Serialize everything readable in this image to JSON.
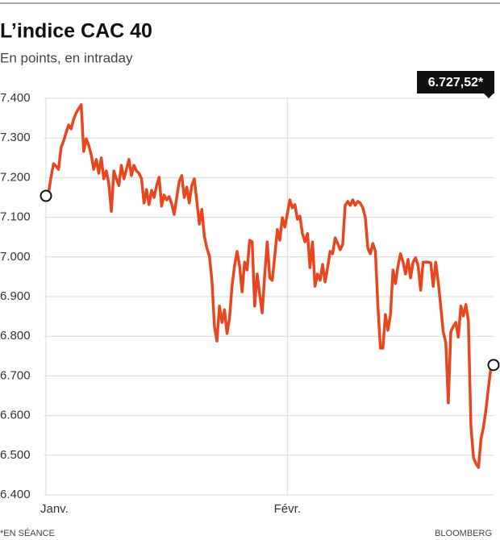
{
  "chart_data": {
    "type": "line",
    "title": "L’indice CAC 40",
    "subtitle": "En points, en intraday",
    "last_label": "6.727,52*",
    "footnote": "*EN SÉANCE",
    "source": "BLOOMBERG",
    "color": "#e8461e",
    "values": [
      7154,
      7160,
      7201,
      7235,
      7229,
      7221,
      7276,
      7292,
      7313,
      7333,
      7323,
      7347,
      7363,
      7374,
      7384,
      7266,
      7298,
      7282,
      7258,
      7221,
      7246,
      7211,
      7250,
      7197,
      7217,
      7185,
      7115,
      7217,
      7197,
      7180,
      7231,
      7197,
      7221,
      7246,
      7205,
      7231,
      7217,
      7211,
      7197,
      7136,
      7170,
      7132,
      7168,
      7150,
      7180,
      7201,
      7128,
      7156,
      7144,
      7152,
      7134,
      7107,
      7150,
      7191,
      7205,
      7150,
      7176,
      7136,
      7180,
      7197,
      7140,
      7083,
      7120,
      7052,
      7022,
      7002,
      6941,
      6825,
      6788,
      6876,
      6835,
      6867,
      6807,
      6845,
      6926,
      6977,
      7014,
      6977,
      6912,
      6987,
      6967,
      7042,
      7038,
      6876,
      6957,
      6906,
      6859,
      6957,
      7038,
      6947,
      6941,
      7002,
      7069,
      7042,
      7099,
      7075,
      7109,
      7144,
      7124,
      7132,
      7095,
      7103,
      7059,
      7038,
      7059,
      6973,
      7038,
      6926,
      6957,
      6941,
      6981,
      6937,
      6973,
      7014,
      7008,
      7048,
      7034,
      7018,
      7032,
      7130,
      7140,
      7130,
      7144,
      7130,
      7140,
      7136,
      7124,
      7099,
      7022,
      7008,
      7034,
      7014,
      6876,
      6770,
      6770,
      6855,
      6815,
      6855,
      6967,
      6933,
      6977,
      7008,
      6987,
      6957,
      6994,
      6947,
      6987,
      6998,
      6977,
      6916,
      6987,
      6987,
      6987,
      6985,
      6926,
      6987,
      6937,
      6876,
      6811,
      6784,
      6632,
      6811,
      6825,
      6835,
      6798,
      6876,
      6851,
      6880,
      6839,
      6575,
      6494,
      6479,
      6469,
      6540,
      6571,
      6615,
      6673,
      6723,
      6727.52
    ],
    "xlim": [
      0,
      178
    ],
    "xticks": [
      {
        "value": 0,
        "label": "Janv."
      },
      {
        "value": 96,
        "label": "Févr."
      }
    ],
    "ylim": [
      6400,
      7400
    ],
    "yticks": [
      {
        "value": 6400,
        "label": "6.400"
      },
      {
        "value": 6500,
        "label": "6.500"
      },
      {
        "value": 6600,
        "label": "6.600"
      },
      {
        "value": 6700,
        "label": "6.700"
      },
      {
        "value": 6800,
        "label": "6.800"
      },
      {
        "value": 6900,
        "label": "6.900"
      },
      {
        "value": 7000,
        "label": "7.000"
      },
      {
        "value": 7100,
        "label": "7.100"
      },
      {
        "value": 7200,
        "label": "7.200"
      },
      {
        "value": 7300,
        "label": "7.300"
      },
      {
        "value": 7400,
        "label": "7.400"
      }
    ],
    "grid": true
  }
}
